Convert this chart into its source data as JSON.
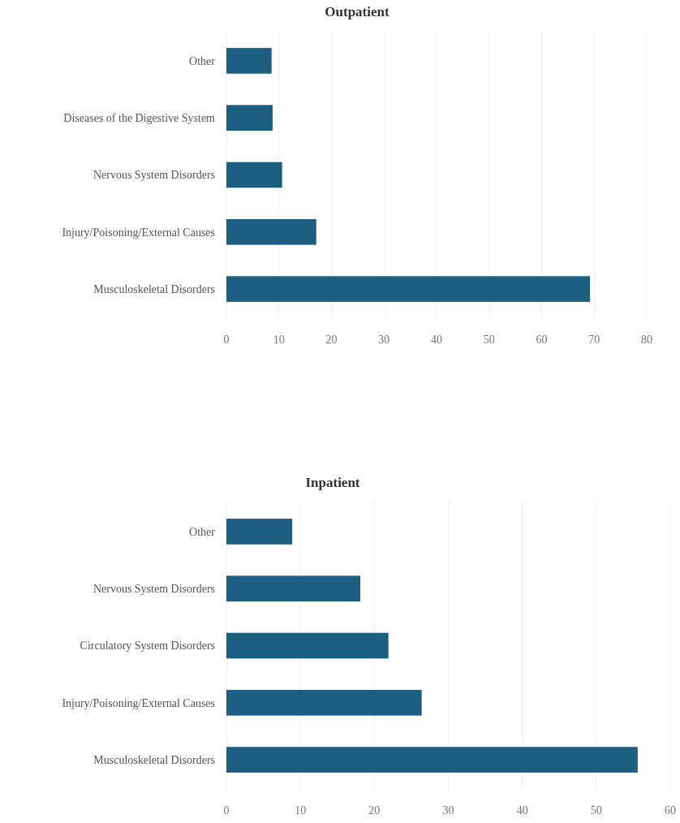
{
  "chart_data": [
    {
      "type": "bar",
      "orientation": "horizontal",
      "title": "Outpatient",
      "categories": [
        "Other",
        "Diseases of the Digestive System",
        "Nervous System Disorders",
        "Injury/Poisoning/External Causes",
        "Musculoskeletal Disorders"
      ],
      "values": [
        8.6,
        8.8,
        10.6,
        17.1,
        69.2
      ],
      "color": "#1b5e80",
      "xlim": [
        0,
        80
      ],
      "xticks": [
        0,
        10,
        20,
        30,
        40,
        50,
        60,
        70,
        80
      ],
      "grid": "x"
    },
    {
      "type": "bar",
      "orientation": "horizontal",
      "title": "Inpatient",
      "categories": [
        "Other",
        "Nervous System Disorders",
        "Circulatory System Disorders",
        "Injury/Poisoning/External Causes",
        "Musculoskeletal Disorders"
      ],
      "values": [
        8.9,
        18.1,
        21.9,
        26.4,
        55.6
      ],
      "color": "#1b5e80",
      "xlim": [
        0,
        60
      ],
      "xticks": [
        0,
        10,
        20,
        30,
        40,
        50,
        60
      ],
      "grid": "x"
    }
  ]
}
